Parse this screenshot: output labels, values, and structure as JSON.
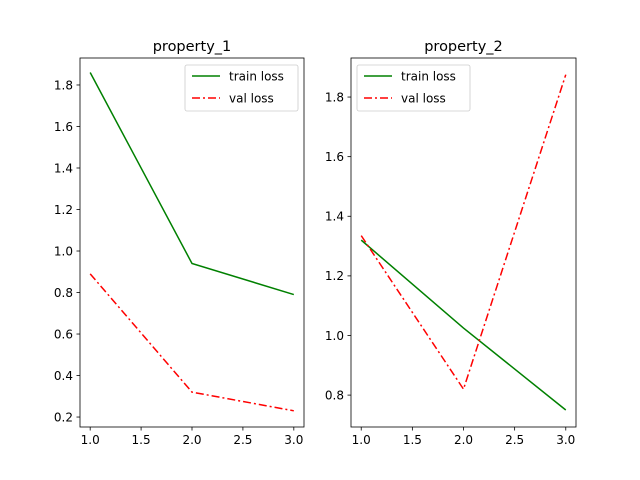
{
  "chart_data": [
    {
      "type": "line",
      "title": "property_1",
      "xlabel": "",
      "ylabel": "",
      "x": [
        1.0,
        2.0,
        3.0
      ],
      "xlim": [
        0.9,
        3.1
      ],
      "ylim": [
        0.152,
        1.93
      ],
      "xticks": [
        1.0,
        1.5,
        2.0,
        2.5,
        3.0
      ],
      "xtick_labels": [
        "1.0",
        "1.5",
        "2.0",
        "2.5",
        "3.0"
      ],
      "yticks": [
        0.2,
        0.4,
        0.6,
        0.8,
        1.0,
        1.2,
        1.4,
        1.6,
        1.8
      ],
      "ytick_labels": [
        "0.2",
        "0.4",
        "0.6",
        "0.8",
        "1.0",
        "1.2",
        "1.4",
        "1.6",
        "1.8"
      ],
      "grid": false,
      "legend_position": "top-right",
      "series": [
        {
          "name": "train loss",
          "values": [
            1.86,
            0.94,
            0.79
          ],
          "color": "#008000",
          "style": "solid"
        },
        {
          "name": "val loss",
          "values": [
            0.89,
            0.32,
            0.23
          ],
          "color": "#ff0000",
          "style": "dashdot"
        }
      ]
    },
    {
      "type": "line",
      "title": "property_2",
      "xlabel": "",
      "ylabel": "",
      "x": [
        1.0,
        2.0,
        3.0
      ],
      "xlim": [
        0.9,
        3.1
      ],
      "ylim": [
        0.693,
        1.931
      ],
      "xticks": [
        1.0,
        1.5,
        2.0,
        2.5,
        3.0
      ],
      "xtick_labels": [
        "1.0",
        "1.5",
        "2.0",
        "2.5",
        "3.0"
      ],
      "yticks": [
        0.8,
        1.0,
        1.2,
        1.4,
        1.6,
        1.8
      ],
      "ytick_labels": [
        "0.8",
        "1.0",
        "1.2",
        "1.4",
        "1.6",
        "1.8"
      ],
      "grid": false,
      "legend_position": "top-left",
      "series": [
        {
          "name": "train loss",
          "values": [
            1.32,
            1.025,
            0.75
          ],
          "color": "#008000",
          "style": "solid"
        },
        {
          "name": "val loss",
          "values": [
            1.335,
            0.82,
            1.875
          ],
          "color": "#ff0000",
          "style": "dashdot"
        }
      ]
    }
  ]
}
